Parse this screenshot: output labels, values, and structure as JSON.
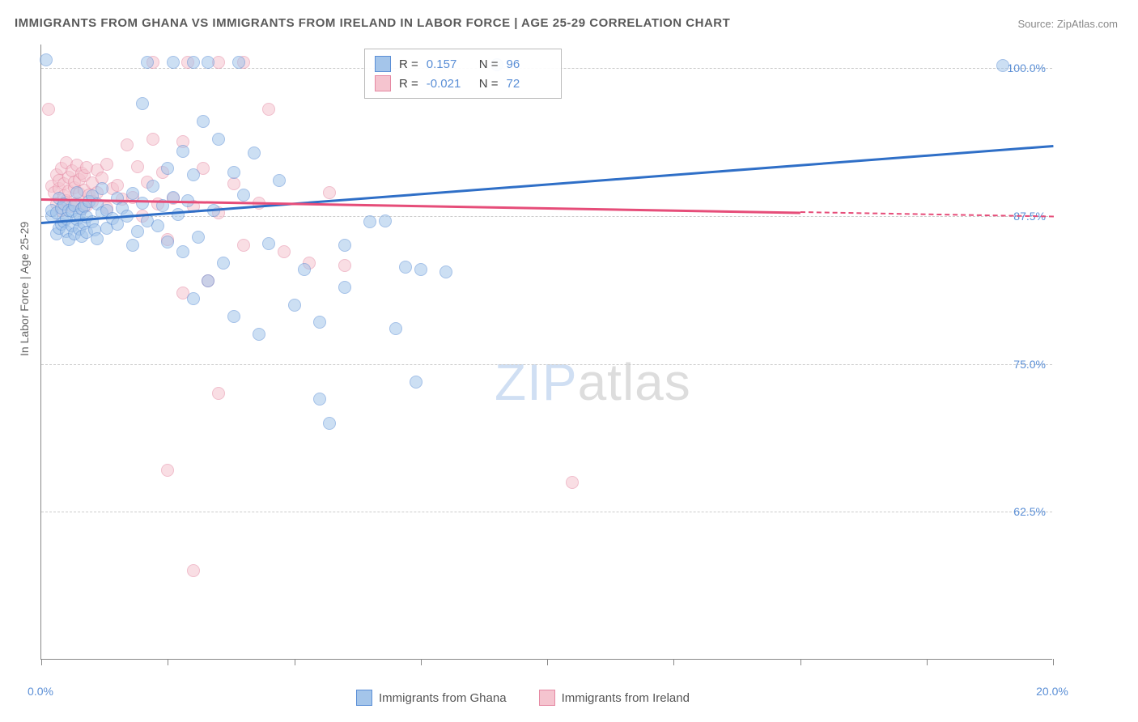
{
  "title": "IMMIGRANTS FROM GHANA VS IMMIGRANTS FROM IRELAND IN LABOR FORCE | AGE 25-29 CORRELATION CHART",
  "source": "Source: ZipAtlas.com",
  "ylabel": "In Labor Force | Age 25-29",
  "watermark_a": "ZIP",
  "watermark_b": "atlas",
  "chart": {
    "type": "scatter",
    "xlim": [
      0,
      20
    ],
    "ylim": [
      50,
      102
    ],
    "xticks": [
      0,
      2.5,
      5.0,
      7.5,
      10.0,
      12.5,
      15.0,
      17.5,
      20.0
    ],
    "xtick_labels_shown": {
      "0": "0.0%",
      "20": "20.0%"
    },
    "yticks": [
      62.5,
      75.0,
      87.5,
      100.0
    ],
    "ytick_labels": [
      "62.5%",
      "75.0%",
      "87.5%",
      "100.0%"
    ],
    "background_color": "#ffffff",
    "grid_color": "#cccccc",
    "axis_color": "#888888",
    "tick_label_color": "#5b8fd6",
    "font_family": "Arial",
    "title_fontsize": 15,
    "label_fontsize": 14,
    "point_radius": 8,
    "point_opacity": 0.55
  },
  "series": {
    "ghana": {
      "label": "Immigrants from Ghana",
      "color_fill": "#a4c5ea",
      "color_stroke": "#5b8fd6",
      "R": "0.157",
      "N": "96",
      "trend": {
        "x1": 0,
        "y1": 87.0,
        "x2": 20,
        "y2": 93.5,
        "solid_end_x": 20,
        "color": "#2f6fc7"
      },
      "points": [
        [
          0.1,
          100.7
        ],
        [
          0.2,
          87.5
        ],
        [
          0.2,
          88.0
        ],
        [
          0.3,
          86.0
        ],
        [
          0.3,
          87.8
        ],
        [
          0.35,
          86.5
        ],
        [
          0.35,
          89.0
        ],
        [
          0.4,
          88.2
        ],
        [
          0.4,
          86.8
        ],
        [
          0.45,
          87.0
        ],
        [
          0.45,
          88.5
        ],
        [
          0.5,
          86.2
        ],
        [
          0.5,
          87.3
        ],
        [
          0.55,
          88.0
        ],
        [
          0.55,
          85.5
        ],
        [
          0.6,
          86.7
        ],
        [
          0.6,
          87.9
        ],
        [
          0.65,
          88.4
        ],
        [
          0.65,
          86.0
        ],
        [
          0.7,
          87.2
        ],
        [
          0.7,
          89.5
        ],
        [
          0.75,
          86.4
        ],
        [
          0.75,
          87.6
        ],
        [
          0.8,
          88.1
        ],
        [
          0.8,
          85.8
        ],
        [
          0.85,
          86.9
        ],
        [
          0.85,
          88.3
        ],
        [
          0.9,
          87.4
        ],
        [
          0.9,
          86.1
        ],
        [
          0.95,
          88.7
        ],
        [
          1.0,
          87.0
        ],
        [
          1.0,
          89.2
        ],
        [
          1.05,
          86.3
        ],
        [
          1.1,
          88.5
        ],
        [
          1.1,
          85.6
        ],
        [
          1.2,
          87.8
        ],
        [
          1.2,
          89.8
        ],
        [
          1.3,
          86.5
        ],
        [
          1.3,
          88.0
        ],
        [
          1.4,
          87.3
        ],
        [
          1.5,
          89.0
        ],
        [
          1.5,
          86.8
        ],
        [
          1.6,
          88.2
        ],
        [
          1.7,
          87.5
        ],
        [
          1.8,
          89.4
        ],
        [
          1.8,
          85.0
        ],
        [
          1.9,
          86.2
        ],
        [
          2.0,
          97.0
        ],
        [
          2.0,
          88.6
        ],
        [
          2.1,
          87.1
        ],
        [
          2.2,
          90.0
        ],
        [
          2.3,
          86.7
        ],
        [
          2.4,
          88.4
        ],
        [
          2.5,
          91.5
        ],
        [
          2.5,
          85.3
        ],
        [
          2.6,
          89.1
        ],
        [
          2.7,
          87.6
        ],
        [
          2.8,
          93.0
        ],
        [
          2.8,
          84.5
        ],
        [
          2.9,
          88.8
        ],
        [
          3.0,
          91.0
        ],
        [
          3.0,
          80.5
        ],
        [
          3.1,
          85.7
        ],
        [
          3.2,
          95.5
        ],
        [
          3.3,
          82.0
        ],
        [
          3.4,
          88.0
        ],
        [
          3.5,
          94.0
        ],
        [
          3.6,
          83.5
        ],
        [
          3.8,
          91.2
        ],
        [
          3.8,
          79.0
        ],
        [
          4.0,
          89.3
        ],
        [
          4.2,
          92.8
        ],
        [
          4.3,
          77.5
        ],
        [
          4.5,
          85.2
        ],
        [
          4.7,
          90.5
        ],
        [
          5.0,
          80.0
        ],
        [
          5.2,
          83.0
        ],
        [
          5.5,
          78.5
        ],
        [
          5.5,
          72.0
        ],
        [
          5.7,
          70.0
        ],
        [
          6.0,
          81.5
        ],
        [
          6.0,
          85.0
        ],
        [
          6.5,
          87.0
        ],
        [
          6.8,
          87.1
        ],
        [
          7.0,
          78.0
        ],
        [
          7.2,
          83.2
        ],
        [
          7.4,
          73.5
        ],
        [
          7.5,
          83.0
        ],
        [
          8.0,
          82.8
        ],
        [
          9.0,
          100.3
        ],
        [
          2.1,
          100.5
        ],
        [
          2.6,
          100.5
        ],
        [
          3.0,
          100.5
        ],
        [
          3.3,
          100.5
        ],
        [
          3.9,
          100.5
        ],
        [
          19.0,
          100.2
        ]
      ]
    },
    "ireland": {
      "label": "Immigrants from Ireland",
      "color_fill": "#f5c4cf",
      "color_stroke": "#e589a3",
      "R": "-0.021",
      "N": "72",
      "trend": {
        "x1": 0,
        "y1": 89.0,
        "x2": 20,
        "y2": 87.5,
        "solid_end_x": 15,
        "color": "#e64d79"
      },
      "points": [
        [
          0.15,
          96.5
        ],
        [
          0.2,
          90.0
        ],
        [
          0.25,
          89.5
        ],
        [
          0.3,
          91.0
        ],
        [
          0.3,
          88.5
        ],
        [
          0.35,
          89.8
        ],
        [
          0.35,
          90.5
        ],
        [
          0.4,
          88.0
        ],
        [
          0.4,
          91.5
        ],
        [
          0.45,
          89.2
        ],
        [
          0.45,
          90.2
        ],
        [
          0.5,
          88.8
        ],
        [
          0.5,
          92.0
        ],
        [
          0.55,
          89.6
        ],
        [
          0.55,
          90.8
        ],
        [
          0.6,
          88.3
        ],
        [
          0.6,
          91.3
        ],
        [
          0.65,
          89.9
        ],
        [
          0.65,
          90.4
        ],
        [
          0.7,
          88.6
        ],
        [
          0.7,
          91.8
        ],
        [
          0.75,
          89.4
        ],
        [
          0.75,
          90.6
        ],
        [
          0.8,
          88.1
        ],
        [
          0.8,
          91.1
        ],
        [
          0.85,
          89.7
        ],
        [
          0.85,
          90.9
        ],
        [
          0.9,
          88.4
        ],
        [
          0.9,
          91.6
        ],
        [
          0.95,
          89.3
        ],
        [
          1.0,
          90.3
        ],
        [
          1.0,
          88.7
        ],
        [
          1.1,
          91.4
        ],
        [
          1.1,
          89.5
        ],
        [
          1.2,
          90.7
        ],
        [
          1.3,
          88.2
        ],
        [
          1.3,
          91.9
        ],
        [
          1.4,
          89.8
        ],
        [
          1.5,
          90.1
        ],
        [
          1.6,
          88.9
        ],
        [
          1.7,
          93.5
        ],
        [
          1.8,
          89.1
        ],
        [
          1.9,
          91.7
        ],
        [
          2.0,
          87.5
        ],
        [
          2.1,
          90.4
        ],
        [
          2.2,
          94.0
        ],
        [
          2.3,
          88.5
        ],
        [
          2.4,
          91.2
        ],
        [
          2.5,
          85.5
        ],
        [
          2.5,
          66.0
        ],
        [
          2.6,
          89.0
        ],
        [
          2.8,
          93.8
        ],
        [
          2.8,
          81.0
        ],
        [
          3.0,
          88.3
        ],
        [
          3.0,
          57.5
        ],
        [
          3.2,
          91.5
        ],
        [
          3.3,
          82.0
        ],
        [
          3.5,
          87.8
        ],
        [
          3.5,
          72.5
        ],
        [
          3.8,
          90.2
        ],
        [
          4.0,
          85.0
        ],
        [
          4.3,
          88.6
        ],
        [
          4.5,
          96.5
        ],
        [
          4.8,
          84.5
        ],
        [
          5.3,
          83.5
        ],
        [
          5.7,
          89.5
        ],
        [
          6.0,
          83.3
        ],
        [
          10.5,
          65.0
        ],
        [
          2.2,
          100.5
        ],
        [
          2.9,
          100.5
        ],
        [
          3.5,
          100.5
        ],
        [
          4.0,
          100.5
        ]
      ]
    }
  },
  "legend_top": {
    "r_label": "R =",
    "n_label": "N ="
  },
  "legend_bottom": {
    "items": [
      "ghana",
      "ireland"
    ]
  }
}
